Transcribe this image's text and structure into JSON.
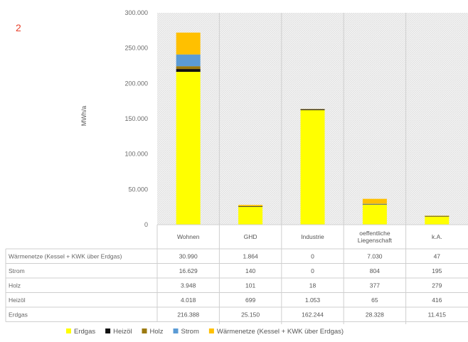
{
  "figure_number": "2",
  "chart_data": {
    "type": "bar",
    "stacked": true,
    "ylabel": "MWh/a",
    "ylim": [
      0,
      300000
    ],
    "yticks": [
      "0",
      "50.000",
      "100.000",
      "150.000",
      "200.000",
      "250.000",
      "300.000"
    ],
    "ytick_values": [
      0,
      50000,
      100000,
      150000,
      200000,
      250000,
      300000
    ],
    "grid": "hatched background",
    "legend_position": "bottom",
    "categories": [
      "Wohnen",
      "GHD",
      "Industrie",
      "oeffentliche Liegenschaft",
      "k.A."
    ],
    "category_lines": [
      [
        "Wohnen"
      ],
      [
        "GHD"
      ],
      [
        "Industrie"
      ],
      [
        "oeffentliche",
        "Liegenschaft"
      ],
      [
        "k.A."
      ]
    ],
    "series": [
      {
        "name": "Erdgas",
        "color": "#ffff00",
        "values": [
          216388,
          25150,
          162244,
          28328,
          11415
        ],
        "labels": [
          "216.388",
          "25.150",
          "162.244",
          "28.328",
          "11.415"
        ]
      },
      {
        "name": "Heizöl",
        "color": "#111111",
        "values": [
          4018,
          699,
          1053,
          65,
          416
        ],
        "labels": [
          "4.018",
          "699",
          "1.053",
          "65",
          "416"
        ]
      },
      {
        "name": "Holz",
        "color": "#9c7a10",
        "values": [
          3948,
          101,
          18,
          377,
          279
        ],
        "labels": [
          "3.948",
          "101",
          "18",
          "377",
          "279"
        ]
      },
      {
        "name": "Strom",
        "color": "#5b9bd5",
        "values": [
          16629,
          140,
          0,
          804,
          195
        ],
        "labels": [
          "16.629",
          "140",
          "0",
          "804",
          "195"
        ]
      },
      {
        "name": "Wärmenetze (Kessel + KWK über Erdgas)",
        "color": "#ffc000",
        "values": [
          30990,
          1864,
          0,
          7030,
          47
        ],
        "labels": [
          "30.990",
          "1.864",
          "0",
          "7.030",
          "47"
        ]
      }
    ],
    "table_rows": [
      {
        "label": "Wärmenetze (Kessel + KWK über Erdgas)",
        "series": 4
      },
      {
        "label": "Strom",
        "series": 3
      },
      {
        "label": "Holz",
        "series": 2
      },
      {
        "label": "Heizöl",
        "series": 1
      },
      {
        "label": "Erdgas",
        "series": 0
      }
    ],
    "legend": [
      {
        "label": "Erdgas",
        "series": 0
      },
      {
        "label": "Heizöl",
        "series": 1
      },
      {
        "label": "Holz",
        "series": 2
      },
      {
        "label": "Strom",
        "series": 3
      },
      {
        "label": "Wärmenetze (Kessel + KWK über Erdgas)",
        "series": 4
      }
    ]
  }
}
